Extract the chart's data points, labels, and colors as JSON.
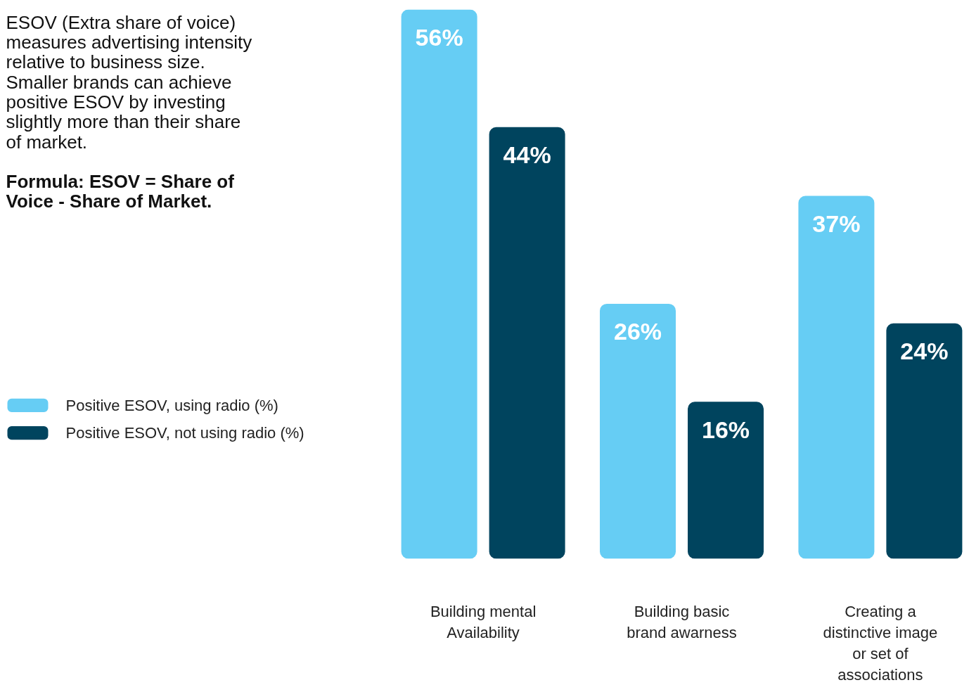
{
  "chart_data": {
    "type": "bar",
    "categories": [
      "Building mental Availability",
      "Building basic brand awarness",
      "Creating a distinctive image or set of associations"
    ],
    "series": [
      {
        "name": "Positive ESOV, using radio (%)",
        "color": "#66cdf4",
        "values": [
          56,
          26,
          37
        ],
        "value_labels": [
          "56%",
          "26%",
          "37%"
        ]
      },
      {
        "name": "Positive ESOV, not using radio (%)",
        "color": "#00445e",
        "values": [
          44,
          16,
          24
        ],
        "value_labels": [
          "44%",
          "16%",
          "24%"
        ]
      }
    ],
    "annotations": [
      "ESOV (Extra share of voice) measures advertising intensity relative to business size. Smaller brands can achieve positive ESOV by investing slightly more than their share of market.",
      "Formula: ESOV = Share of Voice - Share of Market."
    ],
    "legend": "left",
    "grid": false
  }
}
